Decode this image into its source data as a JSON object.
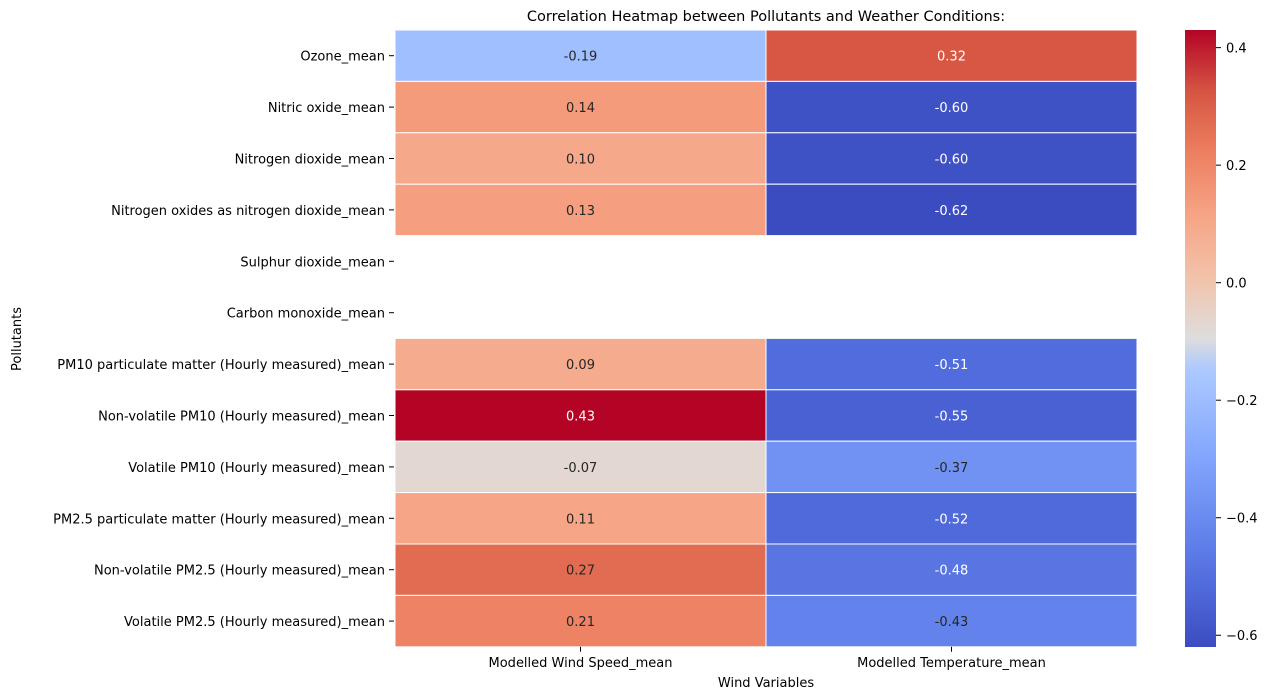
{
  "chart_data": {
    "type": "heatmap",
    "title": "Correlation Heatmap between Pollutants and Weather Conditions:",
    "xlabel": "Wind Variables",
    "ylabel": "Pollutants",
    "x_categories": [
      "Modelled Wind Speed_mean",
      "Modelled Temperature_mean"
    ],
    "y_categories": [
      "Ozone_mean",
      "Nitric oxide_mean",
      "Nitrogen dioxide_mean",
      "Nitrogen oxides as nitrogen dioxide_mean",
      "Sulphur dioxide_mean",
      "Carbon monoxide_mean",
      "PM10 particulate matter (Hourly measured)_mean",
      "Non-volatile PM10 (Hourly measured)_mean",
      "Volatile PM10 (Hourly measured)_mean",
      "PM2.5 particulate matter (Hourly measured)_mean",
      "Non-volatile PM2.5 (Hourly measured)_mean",
      "Volatile PM2.5 (Hourly measured)_mean"
    ],
    "values": [
      [
        -0.19,
        0.32
      ],
      [
        0.14,
        -0.6
      ],
      [
        0.1,
        -0.6
      ],
      [
        0.13,
        -0.62
      ],
      [
        null,
        null
      ],
      [
        null,
        null
      ],
      [
        0.09,
        -0.51
      ],
      [
        0.43,
        -0.55
      ],
      [
        -0.07,
        -0.37
      ],
      [
        0.11,
        -0.52
      ],
      [
        0.27,
        -0.48
      ],
      [
        0.21,
        -0.43
      ]
    ],
    "annotations": [
      [
        "-0.19",
        "0.32"
      ],
      [
        "0.14",
        "-0.60"
      ],
      [
        "0.10",
        "-0.60"
      ],
      [
        "0.13",
        "-0.62"
      ],
      [
        "",
        ""
      ],
      [
        "",
        ""
      ],
      [
        "0.09",
        "-0.51"
      ],
      [
        "0.43",
        "-0.55"
      ],
      [
        "-0.07",
        "-0.37"
      ],
      [
        "0.11",
        "-0.52"
      ],
      [
        "0.27",
        "-0.48"
      ],
      [
        "0.21",
        "-0.43"
      ]
    ],
    "colormap": "coolwarm",
    "vmin": -0.62,
    "vmax": 0.43,
    "colorbar_ticks": [
      -0.6,
      -0.4,
      -0.2,
      0.0,
      0.2,
      0.4
    ],
    "colorbar_tick_labels": [
      "−0.6",
      "−0.4",
      "−0.2",
      "0.0",
      "0.2",
      "0.4"
    ]
  }
}
